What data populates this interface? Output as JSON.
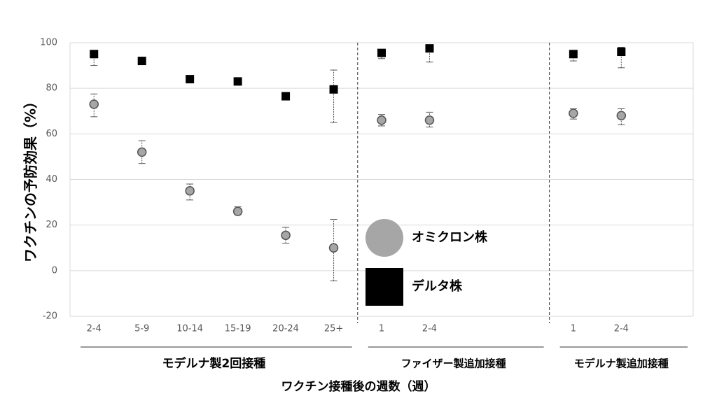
{
  "chart_data": {
    "type": "scatter",
    "y_label": "ワクチンの予防効果（%）",
    "x_label": "ワクチン接種後の週数（週）",
    "categories": [
      "2-4",
      "5-9",
      "10-14",
      "15-19",
      "20-24",
      "25+",
      "1",
      "2-4",
      null,
      null,
      "1",
      "2-4",
      null
    ],
    "groups": [
      "モデルナ製2回接種",
      "ファイザー製追加接種",
      "モデルナ製追加接種"
    ],
    "series": [
      {
        "name": "オミクロン株",
        "color": "#a6a6a6",
        "marker": "circle",
        "values": [
          73,
          52,
          35,
          26,
          15.5,
          10,
          66,
          66,
          null,
          null,
          69,
          68,
          null
        ],
        "lower": [
          67.5,
          47,
          31,
          24.5,
          12,
          -4.5,
          63.5,
          63,
          null,
          null,
          66.5,
          64,
          null
        ],
        "upper": [
          77.5,
          57,
          38,
          28,
          19,
          22.5,
          68.5,
          69.5,
          null,
          null,
          71,
          71,
          null
        ]
      },
      {
        "name": "デルタ株",
        "color": "#000000",
        "marker": "square",
        "values": [
          95,
          92,
          84,
          83,
          76.5,
          79.5,
          95.5,
          97.5,
          null,
          null,
          95,
          96,
          null
        ],
        "lower": [
          90,
          91,
          83,
          82,
          75.5,
          65,
          93,
          91.5,
          null,
          null,
          92,
          89,
          null
        ],
        "upper": [
          96,
          93,
          85,
          84,
          77.5,
          88,
          97,
          98.5,
          null,
          null,
          96.5,
          98,
          null
        ]
      }
    ],
    "ylim": [
      -20,
      100
    ],
    "yticks": [
      -20,
      0,
      20,
      40,
      60,
      80,
      100
    ],
    "grid": true
  }
}
